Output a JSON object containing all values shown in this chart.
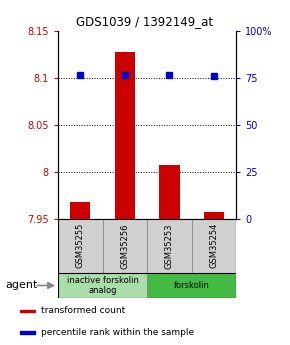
{
  "title": "GDS1039 / 1392149_at",
  "samples": [
    "GSM35255",
    "GSM35256",
    "GSM35253",
    "GSM35254"
  ],
  "bar_values": [
    7.968,
    8.128,
    8.008,
    7.958
  ],
  "bar_bottom": 7.95,
  "percentile_values": [
    76.5,
    76.5,
    76.5,
    76.0
  ],
  "ylim_left": [
    7.95,
    8.15
  ],
  "yticks_left": [
    7.95,
    8.0,
    8.05,
    8.1,
    8.15
  ],
  "ytick_labels_left": [
    "7.95",
    "8",
    "8.05",
    "8.1",
    "8.15"
  ],
  "yticks_right": [
    0,
    25,
    50,
    75,
    100
  ],
  "ytick_labels_right": [
    "0",
    "25",
    "50",
    "75",
    "100%"
  ],
  "bar_color": "#cc0000",
  "percentile_color": "#0000cc",
  "agent_groups": [
    {
      "label": "inactive forskolin\nanalog",
      "start": 0,
      "end": 2,
      "color": "#aaddaa"
    },
    {
      "label": "forskolin",
      "start": 2,
      "end": 4,
      "color": "#44bb44"
    }
  ],
  "agent_label": "agent",
  "legend_items": [
    {
      "color": "#cc0000",
      "label": "transformed count"
    },
    {
      "color": "#0000cc",
      "label": "percentile rank within the sample"
    }
  ],
  "grid_yticks": [
    8.0,
    8.05,
    8.1
  ],
  "left_label_color": "#cc0000",
  "right_label_color": "#0000cc",
  "sample_box_color": "#d0d0d0",
  "bar_width": 0.45
}
